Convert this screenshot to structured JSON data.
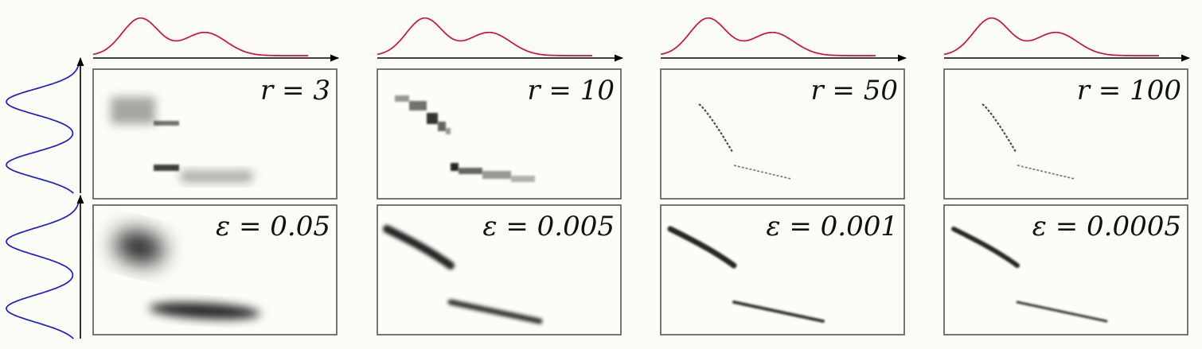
{
  "colors": {
    "background": "#fdfdf8",
    "marginal_top": "#d0103a",
    "marginal_left": "#1b1bd0",
    "plan": "#000000",
    "frame": "#555555"
  },
  "top_row": {
    "panels": [
      {
        "label": "r = 3",
        "r": 3
      },
      {
        "label": "r = 10",
        "r": 10
      },
      {
        "label": "r = 50",
        "r": 50
      },
      {
        "label": "r = 100",
        "r": 100
      }
    ]
  },
  "bottom_row": {
    "panels": [
      {
        "label": "ε = 0.05",
        "epsilon": 0.05
      },
      {
        "label": "ε = 0.005",
        "epsilon": 0.005
      },
      {
        "label": "ε = 0.001",
        "epsilon": 0.001
      },
      {
        "label": "ε = 0.0005",
        "epsilon": 0.0005
      }
    ]
  }
}
